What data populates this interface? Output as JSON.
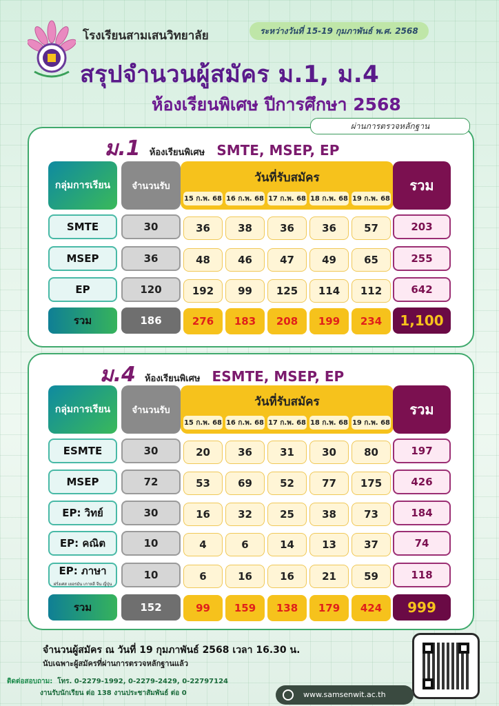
{
  "header": {
    "school": "โรงเรียนสามเสนวิทยาลัย",
    "dates": "ระหว่างวันที่ 15-19 กุมภาพันธ์ พ.ศ. 2568",
    "title": "สรุปจำนวนผู้สมัคร ม.1, ม.4",
    "subtitle": "ห้องเรียนพิเศษ ปีการศึกษา 2568",
    "verified": "ผ่านการตรวจหลักฐาน"
  },
  "labels": {
    "group": "กลุ่มการเรียน",
    "capacity": "จำนวนรับ",
    "days_header": "วันที่รับสมัคร",
    "sum": "รวม",
    "days": [
      "15 ก.พ. 68",
      "16 ก.พ. 68",
      "17 ก.พ. 68",
      "18 ก.พ. 68",
      "19 ก.พ. 68"
    ]
  },
  "m1": {
    "level": "ม.1",
    "special": "ห้องเรียนพิเศษ",
    "programs": "SMTE, MSEP, EP",
    "rows": [
      {
        "name": "SMTE",
        "sub": "",
        "cap": "30",
        "d": [
          "36",
          "38",
          "36",
          "36",
          "57"
        ],
        "sum": "203"
      },
      {
        "name": "MSEP",
        "sub": "",
        "cap": "36",
        "d": [
          "48",
          "46",
          "47",
          "49",
          "65"
        ],
        "sum": "255"
      },
      {
        "name": "EP",
        "sub": "",
        "cap": "120",
        "d": [
          "192",
          "99",
          "125",
          "114",
          "112"
        ],
        "sum": "642"
      }
    ],
    "total": {
      "name": "รวม",
      "cap": "186",
      "d": [
        "276",
        "183",
        "208",
        "199",
        "234"
      ],
      "sum": "1,100"
    }
  },
  "m4": {
    "level": "ม.4",
    "special": "ห้องเรียนพิเศษ",
    "programs": "ESMTE, MSEP, EP",
    "rows": [
      {
        "name": "ESMTE",
        "sub": "",
        "cap": "30",
        "d": [
          "20",
          "36",
          "31",
          "30",
          "80"
        ],
        "sum": "197"
      },
      {
        "name": "MSEP",
        "sub": "",
        "cap": "72",
        "d": [
          "53",
          "69",
          "52",
          "77",
          "175"
        ],
        "sum": "426"
      },
      {
        "name": "EP: วิทย์",
        "sub": "",
        "cap": "30",
        "d": [
          "16",
          "32",
          "25",
          "38",
          "73"
        ],
        "sum": "184"
      },
      {
        "name": "EP: คณิต",
        "sub": "",
        "cap": "10",
        "d": [
          "4",
          "6",
          "14",
          "13",
          "37"
        ],
        "sum": "74"
      },
      {
        "name": "EP: ภาษา",
        "sub": "ฝรั่งเศส เยอรมัน เกาหลี จีน ญี่ปุ่น",
        "cap": "10",
        "d": [
          "6",
          "16",
          "16",
          "21",
          "59"
        ],
        "sum": "118"
      }
    ],
    "total": {
      "name": "รวม",
      "cap": "152",
      "d": [
        "99",
        "159",
        "138",
        "179",
        "424"
      ],
      "sum": "999"
    }
  },
  "notes": {
    "line1": "จำนวนผู้สมัคร ณ วันที่ 19 กุมภาพันธ์ 2568 เวลา 16.30 น.",
    "line2": "นับเฉพาะผู้สมัครที่ผ่านการตรวจหลักฐานแล้ว"
  },
  "footer": {
    "contact_label": "ติดต่อสอบถาม:",
    "phones": "โทร. 0-2279-1992, 0-2279-2429, 0-22797124",
    "ext_line": "งานรับนักเรียน ต่อ 138  งานประชาสัมพันธ์ ต่อ 0",
    "website": "www.samsenwit.ac.th"
  }
}
